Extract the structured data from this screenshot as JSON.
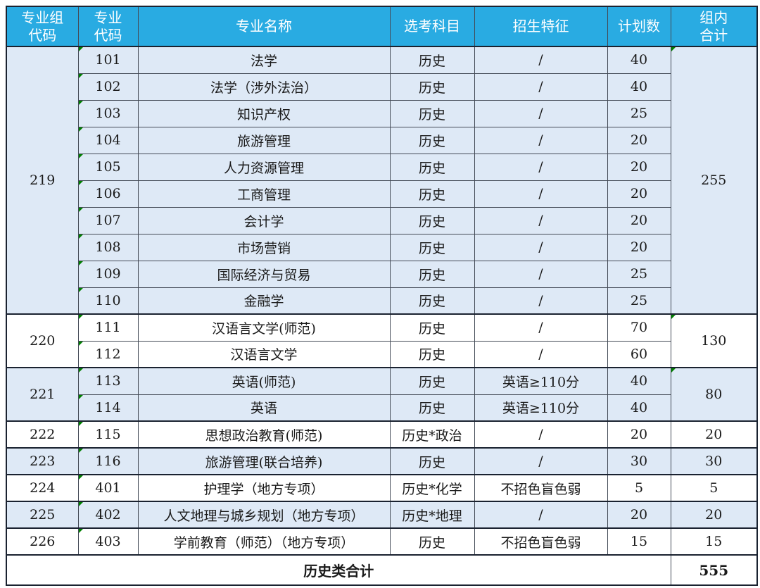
{
  "colors": {
    "header_bg": "#29abe2",
    "header_text": "#ffffff",
    "row_alt_blue": "#dee9f6",
    "row_plain": "#ffffff",
    "border_thick": "#1a2230",
    "border_thin": "#444b57",
    "marker_green": "#008000"
  },
  "table": {
    "headers": [
      "专业组\n代码",
      "专业\n代码",
      "专业名称",
      "选考科目",
      "招生特征",
      "计划数",
      "组内\n合计"
    ],
    "groups": [
      {
        "code": "219",
        "total": "255",
        "rows": [
          {
            "code": "101",
            "name": "法学",
            "subjects": "历史",
            "feature": "/",
            "plan": "40"
          },
          {
            "code": "102",
            "name": "法学（涉外法治）",
            "subjects": "历史",
            "feature": "/",
            "plan": "40"
          },
          {
            "code": "103",
            "name": "知识产权",
            "subjects": "历史",
            "feature": "/",
            "plan": "25"
          },
          {
            "code": "104",
            "name": "旅游管理",
            "subjects": "历史",
            "feature": "/",
            "plan": "20"
          },
          {
            "code": "105",
            "name": "人力资源管理",
            "subjects": "历史",
            "feature": "/",
            "plan": "20"
          },
          {
            "code": "106",
            "name": "工商管理",
            "subjects": "历史",
            "feature": "/",
            "plan": "20"
          },
          {
            "code": "107",
            "name": "会计学",
            "subjects": "历史",
            "feature": "/",
            "plan": "20"
          },
          {
            "code": "108",
            "name": "市场营销",
            "subjects": "历史",
            "feature": "/",
            "plan": "20"
          },
          {
            "code": "109",
            "name": "国际经济与贸易",
            "subjects": "历史",
            "feature": "/",
            "plan": "25"
          },
          {
            "code": "110",
            "name": "金融学",
            "subjects": "历史",
            "feature": "/",
            "plan": "25"
          }
        ]
      },
      {
        "code": "220",
        "total": "130",
        "rows": [
          {
            "code": "111",
            "name": "汉语言文学(师范)",
            "subjects": "历史",
            "feature": "/",
            "plan": "70"
          },
          {
            "code": "112",
            "name": "汉语言文学",
            "subjects": "历史",
            "feature": "/",
            "plan": "60"
          }
        ]
      },
      {
        "code": "221",
        "total": "80",
        "rows": [
          {
            "code": "113",
            "name": "英语(师范)",
            "subjects": "历史",
            "feature": "英语≥110分",
            "plan": "40"
          },
          {
            "code": "114",
            "name": "英语",
            "subjects": "历史",
            "feature": "英语≥110分",
            "plan": "40"
          }
        ]
      },
      {
        "code": "222",
        "total": "20",
        "rows": [
          {
            "code": "115",
            "name": "思想政治教育(师范)",
            "subjects": "历史*政治",
            "feature": "/",
            "plan": "20"
          }
        ]
      },
      {
        "code": "223",
        "total": "30",
        "rows": [
          {
            "code": "116",
            "name": "旅游管理(联合培养)",
            "subjects": "历史",
            "feature": "/",
            "plan": "30"
          }
        ]
      },
      {
        "code": "224",
        "total": "5",
        "rows": [
          {
            "code": "401",
            "name": "护理学（地方专项）",
            "subjects": "历史*化学",
            "feature": "不招色盲色弱",
            "plan": "5"
          }
        ]
      },
      {
        "code": "225",
        "total": "20",
        "rows": [
          {
            "code": "402",
            "name": "人文地理与城乡规划（地方专项）",
            "subjects": "历史*地理",
            "feature": "/",
            "plan": "20"
          }
        ]
      },
      {
        "code": "226",
        "total": "15",
        "rows": [
          {
            "code": "403",
            "name": "学前教育（师范）（地方专项）",
            "subjects": "历史",
            "feature": "不招色盲色弱",
            "plan": "15"
          }
        ]
      }
    ],
    "footer": {
      "label": "历史类合计",
      "total": "555"
    }
  }
}
